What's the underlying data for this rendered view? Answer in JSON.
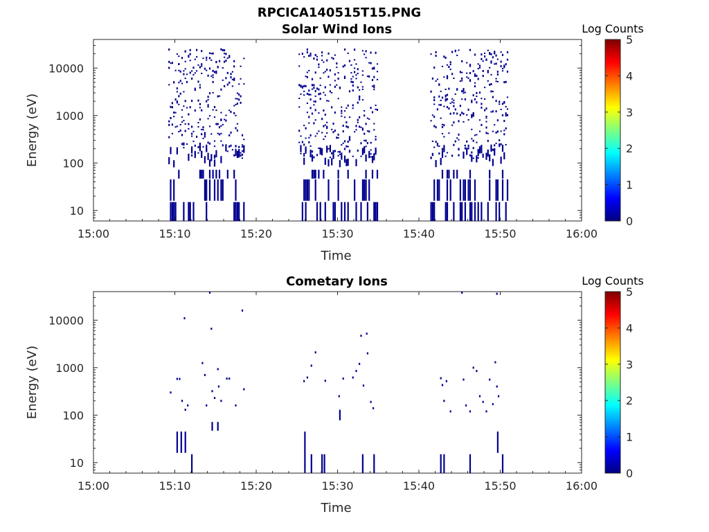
{
  "figure_title": "RPCICA140515T15.PNG",
  "chart_data": [
    {
      "type": "heatmap",
      "title": "Solar Wind Ions",
      "xlabel": "Time",
      "ylabel": "Energy (eV)",
      "x_tick_labels": [
        "15:00",
        "15:10",
        "15:20",
        "15:30",
        "15:40",
        "15:50",
        "16:00"
      ],
      "x_range_minutes": [
        0,
        60
      ],
      "y_scale": "log",
      "y_tick_labels": [
        "10",
        "100",
        "1000",
        "10000"
      ],
      "y_range": [
        6,
        40000
      ],
      "colorbar": {
        "label": "Log Counts",
        "ticks": [
          "0",
          "1",
          "2",
          "3",
          "4",
          "5"
        ],
        "range": [
          0,
          5
        ],
        "colormap": "jet"
      },
      "point_color": "#00008f",
      "active_intervals": [
        {
          "start_minute": 9.2,
          "end_minute": 18.3
        },
        {
          "start_minute": 25.2,
          "end_minute": 34.8
        },
        {
          "start_minute": 41.4,
          "end_minute": 50.8
        }
      ],
      "value_log_counts": 0
    },
    {
      "type": "heatmap",
      "title": "Cometary Ions",
      "xlabel": "Time",
      "ylabel": "Energy (eV)",
      "x_tick_labels": [
        "15:00",
        "15:10",
        "15:20",
        "15:30",
        "15:40",
        "15:50",
        "16:00"
      ],
      "x_range_minutes": [
        0,
        60
      ],
      "y_scale": "log",
      "y_tick_labels": [
        "10",
        "100",
        "1000",
        "10000"
      ],
      "y_range": [
        6,
        40000
      ],
      "colorbar": {
        "label": "Log Counts",
        "ticks": [
          "0",
          "1",
          "2",
          "3",
          "4",
          "5"
        ],
        "range": [
          0,
          5
        ],
        "colormap": "jet"
      },
      "point_color": "#00008f",
      "points": [
        [
          9.4,
          300
        ],
        [
          10.2,
          580
        ],
        [
          10.5,
          580
        ],
        [
          10.8,
          200
        ],
        [
          11.2,
          130
        ],
        [
          11.5,
          160
        ],
        [
          11.1,
          11000
        ],
        [
          13.3,
          1250
        ],
        [
          13.6,
          700
        ],
        [
          13.8,
          160
        ],
        [
          14.2,
          38000
        ],
        [
          14.4,
          6600
        ],
        [
          14.5,
          320
        ],
        [
          14.8,
          230
        ],
        [
          15.2,
          930
        ],
        [
          15.3,
          400
        ],
        [
          15.6,
          200
        ],
        [
          16.3,
          590
        ],
        [
          16.6,
          590
        ],
        [
          17.4,
          160
        ],
        [
          18.2,
          16000
        ],
        [
          18.4,
          350
        ],
        [
          25.8,
          520
        ],
        [
          26.2,
          620
        ],
        [
          26.7,
          1100
        ],
        [
          27.2,
          2100
        ],
        [
          28.4,
          530
        ],
        [
          30.1,
          250
        ],
        [
          30.6,
          590
        ],
        [
          31.8,
          620
        ],
        [
          32.2,
          850
        ],
        [
          32.6,
          1200
        ],
        [
          32.8,
          4700
        ],
        [
          33.1,
          420
        ],
        [
          33.5,
          5200
        ],
        [
          33.6,
          2000
        ],
        [
          34.0,
          190
        ],
        [
          34.3,
          140
        ],
        [
          42.6,
          600
        ],
        [
          42.8,
          430
        ],
        [
          43.0,
          200
        ],
        [
          43.3,
          520
        ],
        [
          43.8,
          120
        ],
        [
          45.2,
          38000
        ],
        [
          45.4,
          560
        ],
        [
          45.7,
          160
        ],
        [
          46.2,
          120
        ],
        [
          46.6,
          1000
        ],
        [
          47.0,
          850
        ],
        [
          47.4,
          250
        ],
        [
          47.8,
          190
        ],
        [
          48.2,
          120
        ],
        [
          48.6,
          560
        ],
        [
          49.3,
          1300
        ],
        [
          49.5,
          400
        ],
        [
          49.7,
          250
        ],
        [
          49.5,
          36000
        ],
        [
          49.0,
          170
        ]
      ],
      "low_energy_streaks": [
        {
          "minute": 10.2,
          "from": 16,
          "to": 45
        },
        {
          "minute": 10.7,
          "from": 16,
          "to": 45
        },
        {
          "minute": 11.2,
          "from": 16,
          "to": 45
        },
        {
          "minute": 12.0,
          "from": 6,
          "to": 15
        },
        {
          "minute": 14.5,
          "from": 47,
          "to": 72
        },
        {
          "minute": 15.2,
          "from": 47,
          "to": 72
        },
        {
          "minute": 25.9,
          "from": 6,
          "to": 45
        },
        {
          "minute": 26.7,
          "from": 6,
          "to": 15
        },
        {
          "minute": 28.0,
          "from": 6,
          "to": 15
        },
        {
          "minute": 28.3,
          "from": 6,
          "to": 15
        },
        {
          "minute": 30.2,
          "from": 78,
          "to": 130
        },
        {
          "minute": 33.0,
          "from": 6,
          "to": 15
        },
        {
          "minute": 34.4,
          "from": 6,
          "to": 15
        },
        {
          "minute": 42.6,
          "from": 6,
          "to": 15
        },
        {
          "minute": 43.0,
          "from": 6,
          "to": 15
        },
        {
          "minute": 46.2,
          "from": 6,
          "to": 15
        },
        {
          "minute": 49.6,
          "from": 16,
          "to": 45
        },
        {
          "minute": 50.2,
          "from": 6,
          "to": 15
        }
      ]
    }
  ]
}
